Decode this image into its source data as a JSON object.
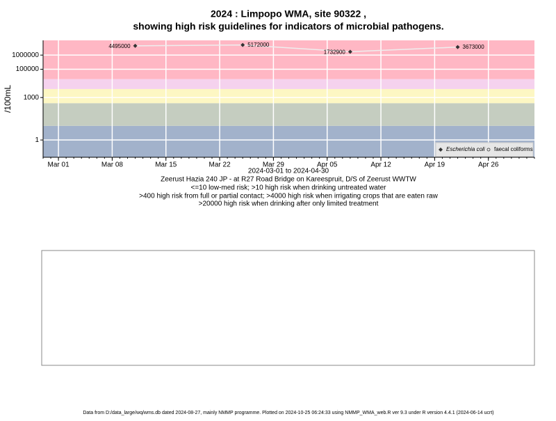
{
  "chart_data": {
    "type": "line",
    "title": [
      "2024 : Limpopo WMA, site 90322 ,",
      "showing high risk guidelines for indicators of microbial pathogens."
    ],
    "y_label": "/100mL",
    "x_label": [
      "2024-03-01 to 2024-04-30",
      "Zeerust Hazia 240 JP - at R27 Road Bridge on Kareespruit, D/S of Zeerust WWTW",
      "<=10 low-med risk; >10 high risk when drinking untreated water",
      ">400 high risk from full or partial contact; >4000 high risk when irrigating crops that are eaten raw",
      ">20000 high risk when drinking after only limited treatment"
    ],
    "footer": "Data from D:/data_large/wq/wms.db dated 2024-08-27, mainly NMMP programme. Plotted on 2024-10-25 06:24:33 using NMMP_WMA_web.R ver 9.3 under R version 4.4.1 (2024-06-14 ucrt)",
    "x": [
      "2024-03-11",
      "2024-03-25",
      "2024-04-08",
      "2024-04-22"
    ],
    "series": [
      {
        "name": "Escherichia coli",
        "color": "#333333",
        "values": [
          4495000,
          5172000,
          1732900,
          3673000
        ]
      },
      {
        "name": "faecal coliforms",
        "color": "#333333",
        "values": [
          null,
          null,
          null,
          null
        ]
      }
    ],
    "line_color": "#eeeeee",
    "log_y": true,
    "ylim": [
      0.06,
      11000000
    ],
    "yticks": [
      1,
      1000,
      100000,
      1000000
    ],
    "xlim": [
      "2024-02-28",
      "2024-05-02"
    ],
    "xticks": [
      {
        "value": "2024-03-01",
        "label": "Mar 01"
      },
      {
        "value": "2024-03-08",
        "label": "Mar 08"
      },
      {
        "value": "2024-03-15",
        "label": "Mar 15"
      },
      {
        "value": "2024-03-22",
        "label": "Mar 22"
      },
      {
        "value": "2024-03-29",
        "label": "Mar 29"
      },
      {
        "value": "2024-04-05",
        "label": "Apr 05"
      },
      {
        "value": "2024-04-12",
        "label": "Apr 12"
      },
      {
        "value": "2024-04-19",
        "label": "Apr 19"
      },
      {
        "value": "2024-04-26",
        "label": "Apr 26"
      }
    ],
    "grid": true,
    "grid_color": "#ffffff",
    "thresholds": [
      10,
      400,
      4000,
      20000
    ],
    "band_colors": [
      "#a2b2cb",
      "#c5cdc0",
      "#fdf7c3",
      "#f5d2ee",
      "#ffb7c4"
    ],
    "legend": "bottom-right"
  }
}
